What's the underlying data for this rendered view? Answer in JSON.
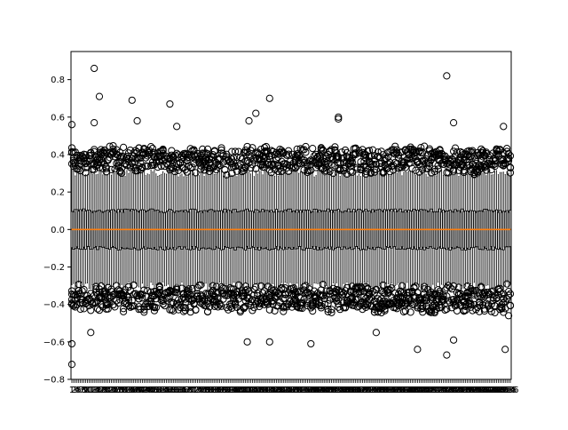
{
  "chart_data": {
    "type": "boxplot",
    "title": "",
    "xlabel": "",
    "ylabel": "",
    "ylim": [
      -0.8,
      0.95
    ],
    "yticks": [
      -0.8,
      -0.6,
      -0.4,
      -0.2,
      0.0,
      0.2,
      0.4,
      0.6,
      0.8
    ],
    "ytick_labels": [
      "−0.8",
      "−0.6",
      "−0.4",
      "−0.2",
      "0.0",
      "0.2",
      "0.4",
      "0.6",
      "0.8"
    ],
    "grid": false,
    "n_boxes": 256,
    "x_tick_labels_note": "1 … 256 (overlapping, illegible)",
    "typical_box": {
      "median": 0.0,
      "q1": -0.1,
      "q3": 0.1,
      "whisker_low": -0.3,
      "whisker_high": 0.3
    },
    "notable_outliers": [
      {
        "box": 1,
        "y": 0.56
      },
      {
        "box": 1,
        "y": -0.61
      },
      {
        "box": 1,
        "y": -0.72
      },
      {
        "box": 12,
        "y": -0.55
      },
      {
        "box": 14,
        "y": 0.86
      },
      {
        "box": 14,
        "y": 0.57
      },
      {
        "box": 17,
        "y": 0.71
      },
      {
        "box": 36,
        "y": 0.69
      },
      {
        "box": 39,
        "y": 0.58
      },
      {
        "box": 58,
        "y": 0.67
      },
      {
        "box": 62,
        "y": 0.55
      },
      {
        "box": 104,
        "y": 0.58
      },
      {
        "box": 108,
        "y": 0.62
      },
      {
        "box": 116,
        "y": 0.7
      },
      {
        "box": 116,
        "y": -0.6
      },
      {
        "box": 103,
        "y": -0.6
      },
      {
        "box": 140,
        "y": -0.61
      },
      {
        "box": 156,
        "y": 0.6
      },
      {
        "box": 156,
        "y": 0.59
      },
      {
        "box": 178,
        "y": -0.55
      },
      {
        "box": 202,
        "y": -0.64
      },
      {
        "box": 219,
        "y": 0.82
      },
      {
        "box": 219,
        "y": -0.67
      },
      {
        "box": 223,
        "y": 0.57
      },
      {
        "box": 223,
        "y": -0.59
      },
      {
        "box": 252,
        "y": 0.55
      },
      {
        "box": 253,
        "y": -0.64
      },
      {
        "box": 255,
        "y": -0.46
      }
    ],
    "colors": {
      "box": "#000000",
      "median": "#ff7f0e",
      "outlier": "#000000"
    }
  }
}
